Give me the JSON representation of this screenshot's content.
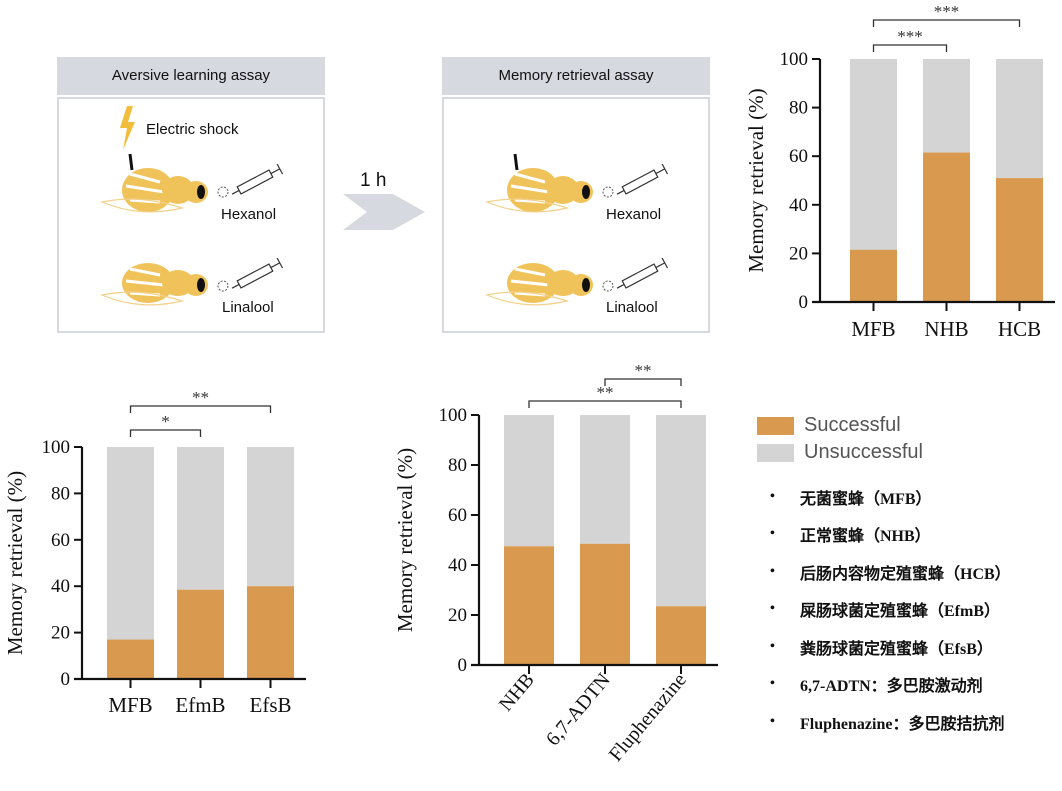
{
  "schematic": {
    "learning_panel": {
      "title": "Aversive learning assay",
      "shock_label": "Electric shock",
      "odor_1": "Hexanol",
      "odor_2": "Linalool"
    },
    "interval_label": "1 h",
    "retrieval_panel": {
      "title": "Memory retrieval assay",
      "odor_1": "Hexanol",
      "odor_2": "Linalool"
    }
  },
  "colors": {
    "successful": "#d99a50",
    "unsuccessful": "#d4d4d4",
    "panel_header": "#d6d9df",
    "bee": "#f0c35a",
    "shock": "#f2bd3c"
  },
  "legend": {
    "items": [
      {
        "label": "Successful",
        "color": "#d99a50"
      },
      {
        "label": "Unsuccessful",
        "color": "#d4d4d4"
      }
    ]
  },
  "notes": [
    "无菌蜜蜂（MFB）",
    "正常蜜蜂（NHB）",
    "后肠内容物定殖蜜蜂（HCB）",
    "屎肠球菌定殖蜜蜂（EfmB）",
    "粪肠球菌定殖蜜蜂（EfsB）",
    "6,7-ADTN：多巴胺激动剂",
    "Fluphenazine：多巴胺拮抗剂"
  ],
  "chart_data": [
    {
      "type": "bar",
      "stacked": true,
      "title": "",
      "xlabel": "",
      "ylabel": "Memory retrieval (%)",
      "ylim": [
        0,
        100
      ],
      "yticks": [
        "0",
        "20",
        "40",
        "60",
        "80",
        "100"
      ],
      "categories": [
        "MFB",
        "NHB",
        "HCB"
      ],
      "series": [
        {
          "name": "Successful",
          "values": [
            21.5,
            61.5,
            51
          ]
        },
        {
          "name": "Unsuccessful",
          "values": [
            78.5,
            38.5,
            49
          ]
        }
      ],
      "significance": [
        {
          "from": "MFB",
          "to": "NHB",
          "label": "***"
        },
        {
          "from": "MFB",
          "to": "HCB",
          "label": "***"
        }
      ]
    },
    {
      "type": "bar",
      "stacked": true,
      "title": "",
      "xlabel": "",
      "ylabel": "Memory retrieval (%)",
      "ylim": [
        0,
        100
      ],
      "yticks": [
        "0",
        "20",
        "40",
        "60",
        "80",
        "100"
      ],
      "categories": [
        "MFB",
        "EfmB",
        "EfsB"
      ],
      "series": [
        {
          "name": "Successful",
          "values": [
            17,
            38.5,
            40
          ]
        },
        {
          "name": "Unsuccessful",
          "values": [
            83,
            61.5,
            60
          ]
        }
      ],
      "significance": [
        {
          "from": "MFB",
          "to": "EfmB",
          "label": "*"
        },
        {
          "from": "MFB",
          "to": "EfsB",
          "label": "**"
        }
      ]
    },
    {
      "type": "bar",
      "stacked": true,
      "title": "",
      "xlabel": "",
      "ylabel": "Memory retrieval (%)",
      "ylim": [
        0,
        100
      ],
      "yticks": [
        "0",
        "20",
        "40",
        "60",
        "80",
        "100"
      ],
      "categories": [
        "NHB",
        "6,7-ADTN",
        "Fluphenazine"
      ],
      "rotated_labels": true,
      "series": [
        {
          "name": "Successful",
          "values": [
            47.5,
            48.5,
            23.5
          ]
        },
        {
          "name": "Unsuccessful",
          "values": [
            52.5,
            51.5,
            76.5
          ]
        }
      ],
      "significance": [
        {
          "from": "NHB",
          "to": "Fluphenazine",
          "label": "**"
        },
        {
          "from": "6,7-ADTN",
          "to": "Fluphenazine",
          "label": "**"
        }
      ]
    }
  ]
}
